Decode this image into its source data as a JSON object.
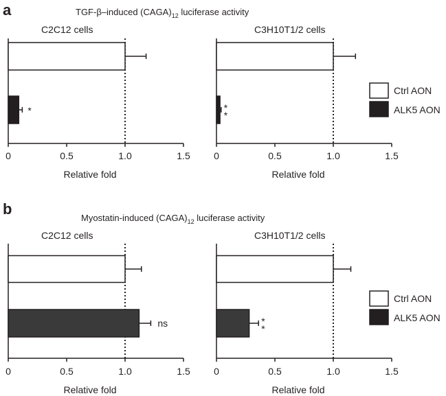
{
  "chart_data": [
    {
      "type": "bar",
      "orientation": "horizontal",
      "panel": "a",
      "title_main": "TGF-β–induced (CAGA)",
      "title_sub": "12",
      "title_tail": " luciferase activity",
      "subtitle": "C2C12 cells",
      "xlabel": "Relative fold",
      "xlim": [
        0,
        1.5
      ],
      "xticks": [
        "0",
        "0.5",
        "1.0",
        "1.5"
      ],
      "reference_line": 1.0,
      "series": [
        {
          "name": "Ctrl AON",
          "color": "#ffffff",
          "value": 1.0,
          "error": 0.18,
          "sig": ""
        },
        {
          "name": "ALK5 AON",
          "color": "#231f20",
          "value": 0.09,
          "error": 0.03,
          "sig": "*"
        }
      ]
    },
    {
      "type": "bar",
      "orientation": "horizontal",
      "panel": "",
      "subtitle": "C3H10T1/2 cells",
      "xlabel": "Relative fold",
      "xlim": [
        0,
        1.5
      ],
      "xticks": [
        "0",
        "0.5",
        "1.0",
        "1.5"
      ],
      "reference_line": 1.0,
      "series": [
        {
          "name": "Ctrl AON",
          "color": "#ffffff",
          "value": 1.0,
          "error": 0.19,
          "sig": ""
        },
        {
          "name": "ALK5 AON",
          "color": "#231f20",
          "value": 0.03,
          "error": 0.01,
          "sig": "**"
        }
      ]
    },
    {
      "type": "bar",
      "orientation": "horizontal",
      "panel": "b",
      "title_main": "Myostatin-induced (CAGA)",
      "title_sub": "12",
      "title_tail": " luciferase activity",
      "subtitle": "C2C12 cells",
      "xlabel": "Relative fold",
      "xlim": [
        0,
        1.5
      ],
      "xticks": [
        "0",
        "0.5",
        "1.0",
        "1.5"
      ],
      "reference_line": 1.0,
      "series": [
        {
          "name": "Ctrl AON",
          "color": "#ffffff",
          "value": 1.0,
          "error": 0.14,
          "sig": ""
        },
        {
          "name": "ALK5 AON",
          "color": "#3a3a3a",
          "value": 1.12,
          "error": 0.1,
          "sig": "ns"
        }
      ]
    },
    {
      "type": "bar",
      "orientation": "horizontal",
      "panel": "",
      "subtitle": "C3H10T1/2 cells",
      "xlabel": "Relative fold",
      "xlim": [
        0,
        1.5
      ],
      "xticks": [
        "0",
        "0.5",
        "1.0",
        "1.5"
      ],
      "reference_line": 1.0,
      "series": [
        {
          "name": "Ctrl AON",
          "color": "#ffffff",
          "value": 1.0,
          "error": 0.15,
          "sig": ""
        },
        {
          "name": "ALK5 AON",
          "color": "#3a3a3a",
          "value": 0.28,
          "error": 0.08,
          "sig": "**"
        }
      ]
    }
  ],
  "legend": [
    {
      "label": "Ctrl AON",
      "color": "#ffffff"
    },
    {
      "label": "ALK5 AON",
      "color": "#231f20"
    }
  ]
}
